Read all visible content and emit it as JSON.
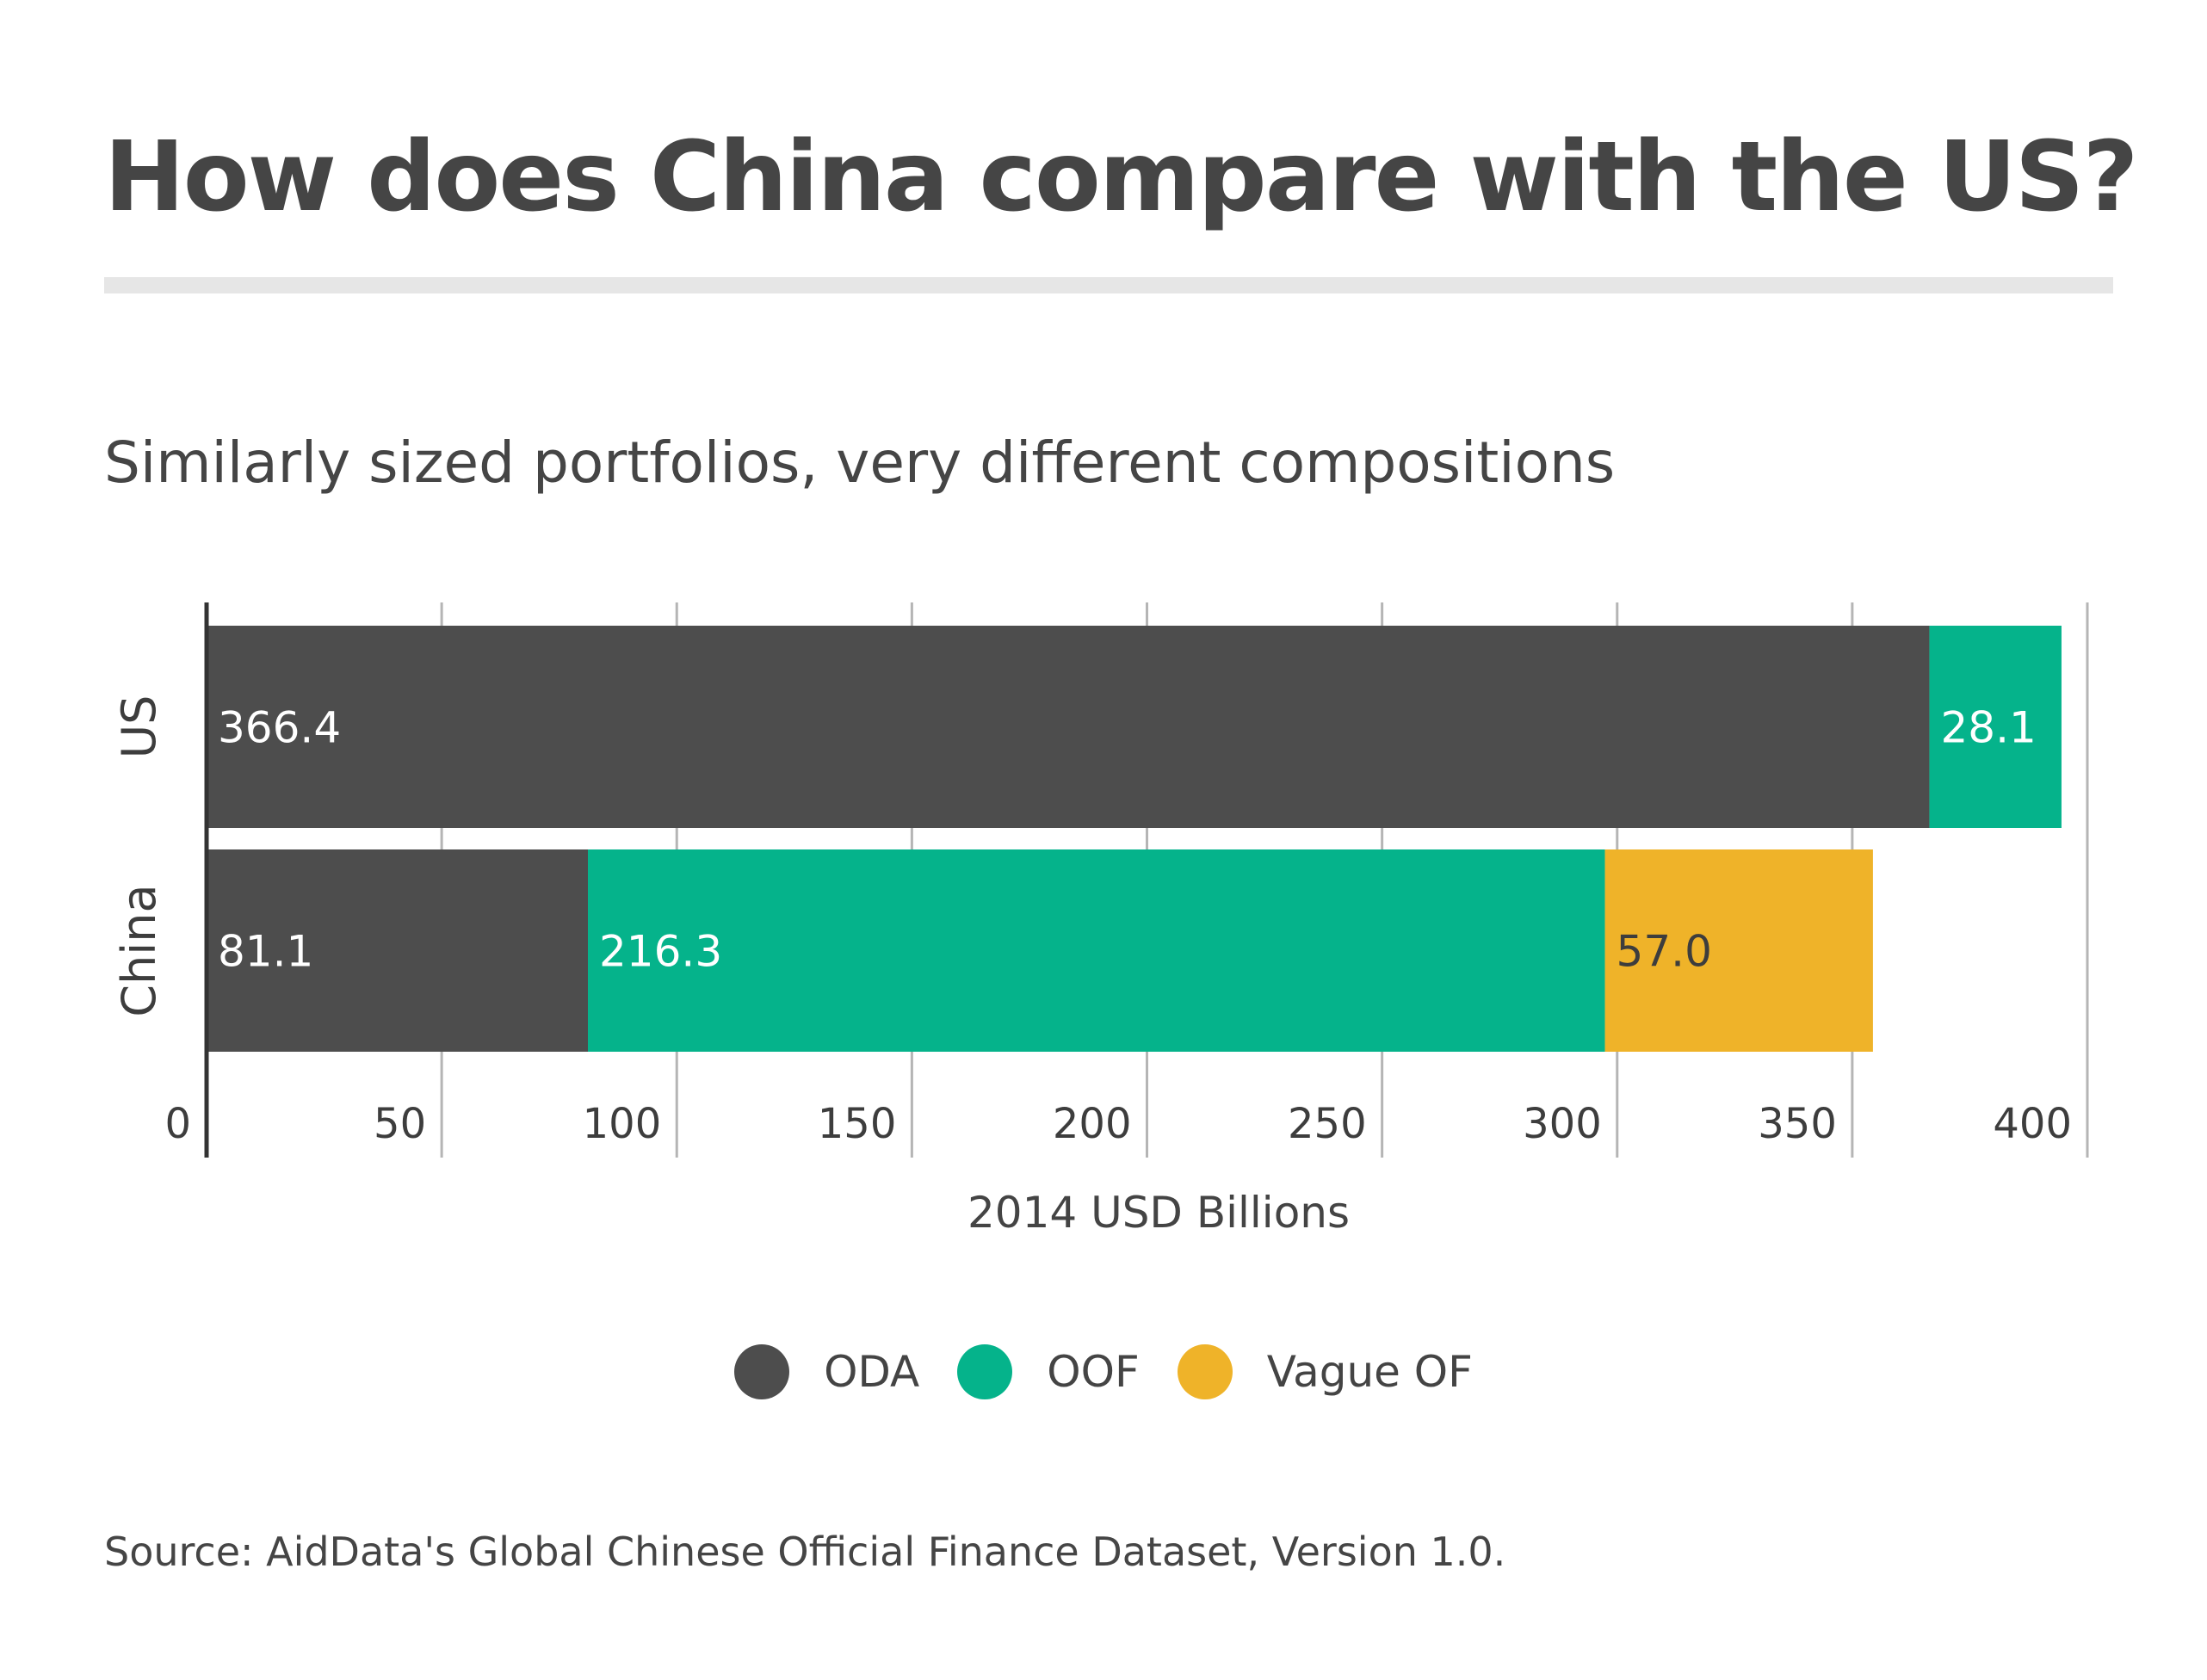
{
  "header": {
    "title": "How does China compare with the US?",
    "subtitle": "Similarly sized portfolios, very different compositions"
  },
  "legend": {
    "items": [
      {
        "label": "ODA",
        "color": "#4d4d4d"
      },
      {
        "label": "OOF",
        "color": "#05b38b"
      },
      {
        "label": "Vague OF",
        "color": "#efb329"
      }
    ]
  },
  "footer": {
    "source": "Source: AidData's Global Chinese Official Finance Dataset, Version 1.0."
  },
  "chart_data": {
    "type": "bar",
    "orientation": "horizontal",
    "stacked": true,
    "categories": [
      "US",
      "China"
    ],
    "series": [
      {
        "name": "ODA",
        "color": "#4d4d4d",
        "label_color": "#ffffff",
        "values": [
          366.4,
          81.1
        ],
        "labels": [
          "366.4",
          "81.1"
        ]
      },
      {
        "name": "OOF",
        "color": "#05b38b",
        "label_color": "#ffffff",
        "values": [
          28.1,
          216.3
        ],
        "labels": [
          "28.1",
          "216.3"
        ]
      },
      {
        "name": "Vague OF",
        "color": "#efb329",
        "label_color": "#3d3d3d",
        "values": [
          0,
          57.0
        ],
        "labels": [
          "",
          "57.0"
        ]
      }
    ],
    "xlabel": "2014 USD Billions",
    "ylabel": "",
    "xlim": [
      0,
      400
    ],
    "xticks": [
      0,
      50,
      100,
      150,
      200,
      250,
      300,
      350,
      400
    ],
    "xtick_labels": [
      "0",
      "50",
      "100",
      "150",
      "200",
      "250",
      "300",
      "350",
      "400"
    ],
    "grid": true,
    "legend_position": "bottom-center"
  }
}
